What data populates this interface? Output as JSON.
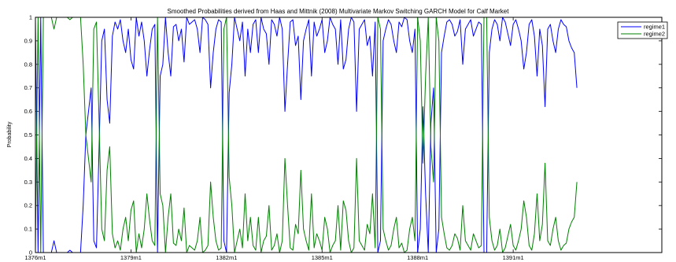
{
  "chart_data": {
    "type": "line",
    "title": "Smoothed Probabilities derived from Haas and Mittnik (2008) Multivariate Markov Switching GARCH Model for Calf Market",
    "xlabel": "",
    "ylabel": "Probability",
    "x_tick_labels": [
      "1376m1",
      "1379m1",
      "1382m1",
      "1385m1",
      "1388m1",
      "1391m1"
    ],
    "x_tick_months": [
      0,
      36,
      72,
      108,
      144,
      180
    ],
    "xlim_months": [
      0,
      236
    ],
    "ylim": [
      0,
      1
    ],
    "y_ticks": [
      0,
      0.1,
      0.2,
      0.3,
      0.4,
      0.5,
      0.6,
      0.7,
      0.8,
      0.9,
      1
    ],
    "y_tick_labels": [
      "0",
      "0.1",
      "0.2",
      "0.3",
      "0.4",
      "0.5",
      "0.6",
      "0.7",
      "0.8",
      "0.9",
      "1"
    ],
    "legend_position": "top-right",
    "series": [
      {
        "name": "regime1",
        "color": "#0000ff",
        "values": [
          0.99,
          0.0,
          1.0,
          0.0,
          0.0,
          0.0,
          0.0,
          0.05,
          0.0,
          0.0,
          0.0,
          0.0,
          0.0,
          0.01,
          0.0,
          0.0,
          0.0,
          0.0,
          0.2,
          0.5,
          0.6,
          0.7,
          0.05,
          0.02,
          0.45,
          0.9,
          0.95,
          0.65,
          0.55,
          0.92,
          0.98,
          0.95,
          0.99,
          0.9,
          0.85,
          0.95,
          0.82,
          0.78,
          1.0,
          0.92,
          0.98,
          0.9,
          0.75,
          0.86,
          0.95,
          0.97,
          0.0,
          0.75,
          0.8,
          1.0,
          0.85,
          0.75,
          0.96,
          0.97,
          0.9,
          0.95,
          0.81,
          1.0,
          0.97,
          0.98,
          0.99,
          0.95,
          0.85,
          1.0,
          0.99,
          0.97,
          0.7,
          0.85,
          0.95,
          0.99,
          0.98,
          0.05,
          0.0,
          0.68,
          0.8,
          1.0,
          0.95,
          0.9,
          0.98,
          0.75,
          0.95,
          0.85,
          0.97,
          0.99,
          0.85,
          1.0,
          0.95,
          0.93,
          0.8,
          0.99,
          0.97,
          0.92,
          1.0,
          0.95,
          0.6,
          0.8,
          0.98,
          0.99,
          0.88,
          0.92,
          0.65,
          0.9,
          0.95,
          0.99,
          0.75,
          0.98,
          0.92,
          0.95,
          0.99,
          0.85,
          0.9,
          1.0,
          0.97,
          0.95,
          0.8,
          0.99,
          0.78,
          0.82,
          0.95,
          1.0,
          0.98,
          0.6,
          0.95,
          0.97,
          0.99,
          0.88,
          0.92,
          0.75,
          0.98,
          0.0,
          0.05,
          0.9,
          0.95,
          0.99,
          0.97,
          0.9,
          0.85,
          0.98,
          0.96,
          1.0,
          0.99,
          0.9,
          0.85,
          0.95,
          0.0,
          0.1,
          0.62,
          0.25,
          0.0,
          0.55,
          0.7,
          0.0,
          0.1,
          0.85,
          0.92,
          0.98,
          0.99,
          0.97,
          0.92,
          0.94,
          0.99,
          0.8,
          0.95,
          0.97,
          0.99,
          0.92,
          0.95,
          0.98,
          0.97,
          0.0,
          0.0,
          0.85,
          0.95,
          0.99,
          0.97,
          0.9,
          1.0,
          0.98,
          0.93,
          0.88,
          0.97,
          0.99,
          0.95,
          0.9,
          0.78,
          0.85,
          0.97,
          0.99,
          0.92,
          0.75,
          0.95,
          0.88,
          0.62,
          0.95,
          0.97,
          0.9,
          0.85,
          0.95,
          0.99,
          0.97,
          0.96,
          0.9,
          0.87,
          0.85,
          0.7
        ]
      },
      {
        "name": "regime2",
        "color": "#008000",
        "values": [
          0.01,
          1.0,
          0.0,
          1.0,
          1.0,
          1.0,
          1.0,
          0.95,
          1.0,
          1.0,
          1.0,
          1.0,
          1.0,
          0.99,
          1.0,
          1.0,
          1.0,
          1.0,
          0.8,
          0.5,
          0.4,
          0.3,
          0.95,
          0.98,
          0.55,
          0.1,
          0.05,
          0.35,
          0.45,
          0.08,
          0.02,
          0.05,
          0.01,
          0.1,
          0.15,
          0.05,
          0.18,
          0.22,
          0.0,
          0.08,
          0.02,
          0.1,
          0.25,
          0.14,
          0.05,
          0.03,
          1.0,
          0.25,
          0.2,
          0.0,
          0.15,
          0.25,
          0.04,
          0.03,
          0.1,
          0.05,
          0.19,
          0.0,
          0.03,
          0.02,
          0.01,
          0.05,
          0.15,
          0.0,
          0.01,
          0.03,
          0.3,
          0.15,
          0.05,
          0.01,
          0.02,
          0.95,
          1.0,
          0.32,
          0.2,
          0.0,
          0.05,
          0.1,
          0.02,
          0.25,
          0.05,
          0.15,
          0.03,
          0.01,
          0.15,
          0.0,
          0.05,
          0.07,
          0.2,
          0.01,
          0.03,
          0.08,
          0.0,
          0.05,
          0.4,
          0.2,
          0.02,
          0.01,
          0.12,
          0.08,
          0.35,
          0.1,
          0.05,
          0.01,
          0.25,
          0.02,
          0.08,
          0.05,
          0.01,
          0.15,
          0.1,
          0.0,
          0.03,
          0.05,
          0.2,
          0.01,
          0.22,
          0.18,
          0.05,
          0.0,
          0.02,
          0.4,
          0.05,
          0.03,
          0.01,
          0.12,
          0.08,
          0.25,
          0.02,
          1.0,
          0.95,
          0.1,
          0.05,
          0.01,
          0.03,
          0.1,
          0.15,
          0.02,
          0.04,
          0.0,
          0.01,
          0.1,
          0.15,
          0.05,
          1.0,
          0.9,
          0.38,
          0.75,
          1.0,
          0.45,
          0.3,
          1.0,
          0.9,
          0.15,
          0.08,
          0.02,
          0.01,
          0.03,
          0.08,
          0.06,
          0.01,
          0.2,
          0.05,
          0.03,
          0.01,
          0.08,
          0.05,
          0.02,
          0.03,
          1.0,
          1.0,
          0.15,
          0.05,
          0.01,
          0.03,
          0.1,
          0.0,
          0.02,
          0.07,
          0.12,
          0.03,
          0.01,
          0.05,
          0.1,
          0.22,
          0.15,
          0.03,
          0.01,
          0.08,
          0.25,
          0.05,
          0.12,
          0.38,
          0.05,
          0.03,
          0.1,
          0.15,
          0.05,
          0.01,
          0.03,
          0.04,
          0.1,
          0.13,
          0.15,
          0.3
        ]
      }
    ]
  }
}
